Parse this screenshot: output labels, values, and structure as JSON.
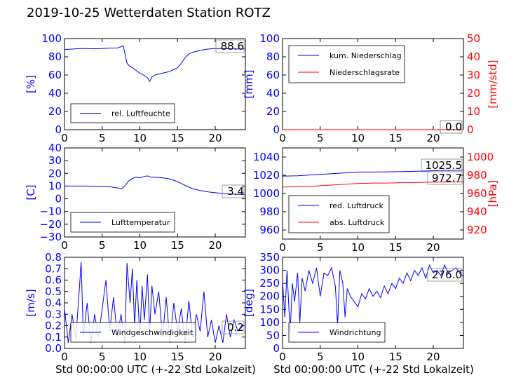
{
  "title": "2019-10-25 Wetterdaten Station ROTZ",
  "xlabel": "Std 00:00:00 UTC (+-22 Std Lokalzeit)",
  "colors": {
    "blue": "#0000ff",
    "red": "#ff0000",
    "black": "#000000"
  },
  "chart_data": [
    {
      "type": "line",
      "ylabel": "[%]",
      "xlim": [
        0,
        24
      ],
      "ylim": [
        0,
        100
      ],
      "xticks": [
        "0",
        "5",
        "10",
        "15",
        "20"
      ],
      "yticks": [
        "0",
        "20",
        "40",
        "60",
        "80",
        "100"
      ],
      "legend": "lower-left",
      "current_value": "88.6",
      "series": [
        {
          "name": "rel. Luftfeuchte",
          "color": "#0000ff",
          "x": [
            0,
            1,
            2,
            3,
            4,
            5,
            6,
            7,
            7.8,
            8.1,
            8.3,
            8.6,
            9,
            9.5,
            10,
            10.5,
            11,
            11.3,
            11.6,
            12,
            13,
            14,
            15,
            15.5,
            16,
            16.5,
            17,
            18,
            19,
            20,
            21,
            22,
            23,
            24
          ],
          "y": [
            88,
            88.5,
            89,
            89,
            88.8,
            89,
            89.5,
            89.6,
            92,
            80,
            73,
            70,
            68,
            65,
            62,
            60,
            57,
            53,
            58,
            60,
            62,
            64,
            68,
            73,
            79,
            83,
            85,
            87,
            88.5,
            89,
            89,
            88.8,
            88.6,
            88.6
          ]
        }
      ]
    },
    {
      "type": "line",
      "ylabel": "[mm]",
      "ylabel_right": "[mm/std]",
      "xlim": [
        0,
        24
      ],
      "ylim": [
        0,
        100
      ],
      "ylim_right": [
        0,
        50
      ],
      "xticks": [
        "0",
        "5",
        "10",
        "15",
        "20"
      ],
      "yticks": [
        "0",
        "20",
        "40",
        "60",
        "80",
        "100"
      ],
      "yticks_right": [
        "0",
        "10",
        "20",
        "30",
        "40",
        "50"
      ],
      "legend": "top-left",
      "current_values": [
        "0.0",
        "0.0"
      ],
      "series": [
        {
          "name": "kum. Niederschlag",
          "color": "#0000ff",
          "x": [
            0,
            24
          ],
          "y": [
            0,
            0
          ]
        },
        {
          "name": "Niederschlagsrate",
          "color": "#ff0000",
          "x": [
            0,
            24
          ],
          "y": [
            0,
            0
          ]
        }
      ]
    },
    {
      "type": "line",
      "ylabel": "[C]",
      "xlim": [
        0,
        24
      ],
      "ylim": [
        -30,
        40
      ],
      "xticks": [
        "0",
        "5",
        "10",
        "15",
        "20"
      ],
      "yticks": [
        "−30",
        "−20",
        "−10",
        "0",
        "10",
        "20",
        "30",
        "40"
      ],
      "legend": "lower-left",
      "current_value": "3.4",
      "series": [
        {
          "name": "Lufttemperatur",
          "color": "#0000ff",
          "x": [
            0,
            1,
            2,
            3,
            4,
            5,
            6,
            7,
            7.6,
            8,
            8.5,
            9,
            9.5,
            10,
            10.5,
            11,
            11.5,
            12,
            13,
            14,
            15,
            16,
            17,
            18,
            19,
            20,
            21,
            22,
            23,
            24
          ],
          "y": [
            10,
            10,
            10,
            10,
            9.8,
            9.7,
            9.5,
            8.5,
            8,
            10,
            14,
            16,
            17,
            16.5,
            17.5,
            18,
            17,
            17,
            16.5,
            15.5,
            13.5,
            10.5,
            8,
            6.5,
            5.5,
            4.8,
            4.2,
            3.8,
            3.5,
            3.4
          ]
        }
      ]
    },
    {
      "type": "line",
      "ylabel": "",
      "ylabel_right": "[hPa]",
      "xlim": [
        0,
        24
      ],
      "ylim": [
        950,
        1050
      ],
      "ylim_right": [
        910,
        1010
      ],
      "xticks": [
        "0",
        "5",
        "10",
        "15",
        "20"
      ],
      "yticks": [
        "960",
        "980",
        "1000",
        "1020",
        "1040"
      ],
      "yticks_right": [
        "920",
        "940",
        "960",
        "980",
        "1000"
      ],
      "legend": "lower-left",
      "current_values": [
        "1025.5",
        "972.7"
      ],
      "series": [
        {
          "name": "red. Luftdruck",
          "color": "#0000ff",
          "x": [
            0,
            2,
            4,
            6,
            8,
            10,
            12,
            14,
            16,
            18,
            20,
            22,
            24
          ],
          "y": [
            1019,
            1019.5,
            1020.5,
            1021.5,
            1022.5,
            1023.5,
            1023.5,
            1023.8,
            1024,
            1024.5,
            1025,
            1025.3,
            1025.5
          ]
        }
      ],
      "series_right": [
        {
          "name": "abs. Luftdruck",
          "color": "#ff0000",
          "x": [
            0,
            2,
            4,
            6,
            8,
            10,
            12,
            14,
            16,
            18,
            20,
            22,
            24
          ],
          "y": [
            967,
            967.5,
            968,
            969,
            970,
            971,
            971.5,
            971.5,
            972,
            972,
            972.5,
            972.6,
            972.7
          ]
        }
      ]
    },
    {
      "type": "line",
      "ylabel": "[m/s]",
      "xlim": [
        0,
        24
      ],
      "ylim": [
        0,
        0.8
      ],
      "xticks": [
        "0",
        "5",
        "10",
        "15",
        "20"
      ],
      "yticks": [
        "0.0",
        "0.1",
        "0.2",
        "0.3",
        "0.4",
        "0.5",
        "0.6",
        "0.7",
        "0.8"
      ],
      "legend": "lower-left",
      "current_value": "0.2",
      "series": [
        {
          "name": "Windgeschwindigkeit",
          "color": "#0000ff",
          "x": [
            0,
            0.5,
            1,
            1.5,
            2,
            2.2,
            2.5,
            3,
            3.5,
            4,
            4.5,
            5,
            5.5,
            6,
            6.5,
            7,
            7.5,
            8,
            8.3,
            8.7,
            9,
            9.3,
            9.6,
            10,
            10.3,
            10.6,
            11,
            11.3,
            11.6,
            12,
            12.5,
            13,
            13.5,
            14,
            14.5,
            15,
            15.5,
            16,
            16.5,
            17,
            17.5,
            18,
            18.5,
            19,
            19.5,
            20,
            20.5,
            21,
            21.5,
            22,
            22.5,
            23,
            23.5,
            24
          ],
          "y": [
            0.35,
            0.05,
            0.3,
            0.08,
            0.55,
            0.76,
            0.1,
            0.4,
            0.05,
            0.3,
            0.1,
            0.35,
            0.6,
            0.15,
            0.45,
            0.1,
            0.3,
            0.05,
            0.75,
            0.4,
            0.7,
            0.2,
            0.6,
            0.1,
            0.55,
            0.25,
            0.65,
            0.15,
            0.55,
            0.3,
            0.5,
            0.1,
            0.45,
            0.05,
            0.4,
            0.15,
            0.35,
            0.05,
            0.42,
            0.1,
            0.3,
            0.15,
            0.5,
            0.1,
            0.25,
            0.05,
            0.2,
            0.05,
            0.3,
            0.1,
            0.25,
            0.15,
            0.2,
            0.2
          ]
        }
      ]
    },
    {
      "type": "line",
      "ylabel": "[deg]",
      "xlim": [
        0,
        24
      ],
      "ylim": [
        0,
        350
      ],
      "xticks": [
        "0",
        "5",
        "10",
        "15",
        "20"
      ],
      "yticks": [
        "0",
        "50",
        "100",
        "150",
        "200",
        "250",
        "300",
        "350"
      ],
      "legend": "lower-left",
      "current_value": "276.0",
      "series": [
        {
          "name": "Windrichtung",
          "color": "#0000ff",
          "x": [
            0,
            0.3,
            0.6,
            1,
            1.3,
            1.6,
            2,
            2.3,
            2.6,
            3,
            3.5,
            4,
            4.5,
            5,
            5.5,
            6,
            6.5,
            7,
            7.3,
            7.6,
            8,
            8.3,
            8.6,
            9,
            9.5,
            10,
            10.5,
            11,
            11.5,
            12,
            12.5,
            13,
            13.5,
            14,
            14.5,
            15,
            15.5,
            16,
            16.5,
            17,
            17.5,
            18,
            18.5,
            19,
            19.5,
            20,
            20.5,
            21,
            21.5,
            22,
            22.5,
            23,
            23.5,
            24
          ],
          "y": [
            260,
            120,
            300,
            60,
            250,
            180,
            290,
            100,
            270,
            220,
            300,
            250,
            310,
            200,
            290,
            280,
            310,
            240,
            90,
            300,
            250,
            120,
            230,
            200,
            180,
            160,
            210,
            190,
            230,
            200,
            220,
            195,
            240,
            210,
            250,
            230,
            270,
            250,
            290,
            260,
            300,
            280,
            310,
            270,
            320,
            290,
            300,
            280,
            320,
            290,
            300,
            310,
            290,
            276
          ]
        }
      ]
    }
  ]
}
